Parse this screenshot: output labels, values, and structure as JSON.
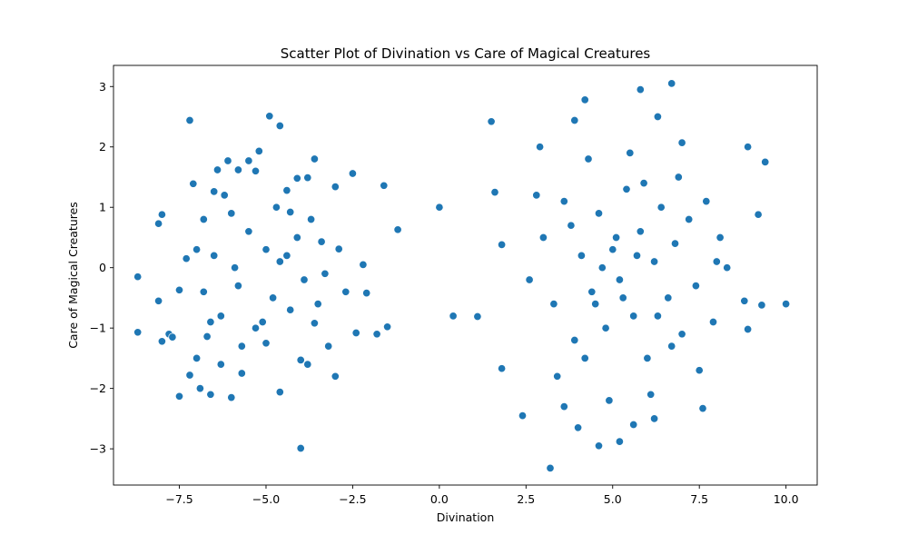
{
  "chart_data": {
    "type": "scatter",
    "title": "Scatter Plot of Divination vs Care of Magical Creatures",
    "xlabel": "Divination",
    "ylabel": "Care of Magical Creatures",
    "xlim": [
      -9.4,
      10.9
    ],
    "ylim": [
      -3.6,
      3.35
    ],
    "xticks": [
      -7.5,
      -5.0,
      -2.5,
      0.0,
      2.5,
      5.0,
      7.5,
      10.0
    ],
    "xtick_labels": [
      "−7.5",
      "−5.0",
      "−2.5",
      "0.0",
      "2.5",
      "5.0",
      "7.5",
      "10.0"
    ],
    "yticks": [
      -3,
      -2,
      -1,
      0,
      1,
      2,
      3
    ],
    "ytick_labels": [
      "−3",
      "−2",
      "−1",
      "0",
      "1",
      "2",
      "3"
    ],
    "grid": false,
    "legend": "none",
    "marker_color": "#1f77b4",
    "series": [
      {
        "points": [
          [
            -8.7,
            -0.15
          ],
          [
            -8.7,
            -1.07
          ],
          [
            -8.1,
            -0.55
          ],
          [
            -8.1,
            0.73
          ],
          [
            -8.0,
            0.88
          ],
          [
            -8.0,
            -1.22
          ],
          [
            -7.8,
            -1.1
          ],
          [
            -7.7,
            -1.15
          ],
          [
            -7.5,
            -2.13
          ],
          [
            -7.5,
            -0.37
          ],
          [
            -7.3,
            0.15
          ],
          [
            -7.2,
            2.44
          ],
          [
            -7.1,
            1.39
          ],
          [
            -7.2,
            -1.78
          ],
          [
            -7.0,
            -1.5
          ],
          [
            -6.9,
            -2.0
          ],
          [
            -6.8,
            0.8
          ],
          [
            -6.7,
            -1.14
          ],
          [
            -6.6,
            -2.1
          ],
          [
            -6.5,
            1.26
          ],
          [
            -6.4,
            1.62
          ],
          [
            -6.3,
            -1.6
          ],
          [
            -6.1,
            1.77
          ],
          [
            -6.0,
            -2.15
          ],
          [
            -5.8,
            1.62
          ],
          [
            -5.7,
            -1.75
          ],
          [
            -5.5,
            1.77
          ],
          [
            -5.3,
            1.6
          ],
          [
            -5.2,
            1.93
          ],
          [
            -5.0,
            -1.25
          ],
          [
            -4.9,
            2.51
          ],
          [
            -4.6,
            2.35
          ],
          [
            -4.6,
            -2.06
          ],
          [
            -4.4,
            1.28
          ],
          [
            -4.3,
            0.92
          ],
          [
            -4.1,
            1.48
          ],
          [
            -4.0,
            -1.53
          ],
          [
            -4.0,
            -2.99
          ],
          [
            -3.8,
            -1.6
          ],
          [
            -3.8,
            1.49
          ],
          [
            -3.6,
            1.8
          ],
          [
            -3.6,
            -0.92
          ],
          [
            -3.4,
            0.43
          ],
          [
            -3.2,
            -1.3
          ],
          [
            -3.0,
            -1.8
          ],
          [
            -3.0,
            1.34
          ],
          [
            -2.9,
            0.31
          ],
          [
            -2.7,
            -0.4
          ],
          [
            -2.5,
            1.56
          ],
          [
            -2.4,
            -1.08
          ],
          [
            -2.2,
            0.05
          ],
          [
            -2.1,
            -0.42
          ],
          [
            -1.8,
            -1.1
          ],
          [
            -1.6,
            1.36
          ],
          [
            -1.5,
            -0.98
          ],
          [
            -1.2,
            0.63
          ],
          [
            -6.5,
            0.2
          ],
          [
            -6.3,
            -0.8
          ],
          [
            -6.0,
            0.9
          ],
          [
            -5.8,
            -0.3
          ],
          [
            -5.5,
            0.6
          ],
          [
            -5.3,
            -1.0
          ],
          [
            -5.0,
            0.3
          ],
          [
            -4.8,
            -0.5
          ],
          [
            -4.6,
            0.1
          ],
          [
            -4.3,
            -0.7
          ],
          [
            -4.1,
            0.5
          ],
          [
            -3.9,
            -0.2
          ],
          [
            -3.7,
            0.8
          ],
          [
            -3.5,
            -0.6
          ],
          [
            -6.8,
            -0.4
          ],
          [
            -7.0,
            0.3
          ],
          [
            -6.2,
            1.2
          ],
          [
            -5.7,
            -1.3
          ],
          [
            -4.7,
            1.0
          ],
          [
            -5.1,
            -0.9
          ],
          [
            -3.3,
            -0.1
          ],
          [
            -4.4,
            0.2
          ],
          [
            -5.9,
            0.0
          ],
          [
            -6.6,
            -0.9
          ],
          [
            0.0,
            1.0
          ],
          [
            0.4,
            -0.8
          ],
          [
            1.1,
            -0.81
          ],
          [
            1.5,
            2.42
          ],
          [
            1.6,
            1.25
          ],
          [
            1.8,
            0.38
          ],
          [
            1.8,
            -1.67
          ],
          [
            2.4,
            -2.45
          ],
          [
            3.2,
            -3.32
          ],
          [
            4.6,
            -2.95
          ],
          [
            5.2,
            -2.88
          ],
          [
            6.7,
            3.05
          ],
          [
            6.3,
            2.5
          ],
          [
            5.8,
            2.95
          ],
          [
            4.2,
            2.78
          ],
          [
            8.9,
            2.0
          ],
          [
            9.4,
            1.75
          ],
          [
            9.2,
            0.88
          ],
          [
            9.3,
            -0.62
          ],
          [
            10.0,
            -0.6
          ],
          [
            8.9,
            -1.02
          ],
          [
            8.8,
            -0.55
          ],
          [
            7.6,
            -2.33
          ],
          [
            7.0,
            2.07
          ],
          [
            3.9,
            2.44
          ],
          [
            2.9,
            2.0
          ],
          [
            3.6,
            -2.3
          ],
          [
            4.0,
            -2.65
          ],
          [
            5.6,
            -2.6
          ],
          [
            6.2,
            -2.5
          ],
          [
            3.0,
            0.5
          ],
          [
            3.3,
            -0.6
          ],
          [
            3.6,
            1.1
          ],
          [
            3.9,
            -1.2
          ],
          [
            4.1,
            0.2
          ],
          [
            4.4,
            -0.4
          ],
          [
            4.6,
            0.9
          ],
          [
            4.8,
            -1.0
          ],
          [
            5.0,
            0.3
          ],
          [
            5.2,
            -0.2
          ],
          [
            5.4,
            1.3
          ],
          [
            5.6,
            -0.8
          ],
          [
            5.8,
            0.6
          ],
          [
            6.0,
            -1.5
          ],
          [
            6.2,
            0.1
          ],
          [
            6.4,
            1.0
          ],
          [
            6.6,
            -0.5
          ],
          [
            6.8,
            0.4
          ],
          [
            7.0,
            -1.1
          ],
          [
            7.2,
            0.8
          ],
          [
            7.4,
            -0.3
          ],
          [
            7.7,
            1.1
          ],
          [
            7.9,
            -0.9
          ],
          [
            8.1,
            0.5
          ],
          [
            8.3,
            0.0
          ],
          [
            2.6,
            -0.2
          ],
          [
            2.8,
            1.2
          ],
          [
            3.4,
            -1.8
          ],
          [
            4.3,
            1.8
          ],
          [
            4.9,
            -2.2
          ],
          [
            5.5,
            1.9
          ],
          [
            6.1,
            -2.1
          ],
          [
            6.9,
            1.5
          ],
          [
            7.5,
            -1.7
          ],
          [
            8.0,
            0.1
          ],
          [
            4.7,
            0.0
          ],
          [
            5.1,
            0.5
          ],
          [
            5.3,
            -0.5
          ],
          [
            4.5,
            -0.6
          ],
          [
            5.7,
            0.2
          ],
          [
            3.8,
            0.7
          ],
          [
            6.3,
            -0.8
          ],
          [
            4.2,
            -1.5
          ],
          [
            5.9,
            1.4
          ],
          [
            6.7,
            -1.3
          ]
        ]
      }
    ]
  }
}
